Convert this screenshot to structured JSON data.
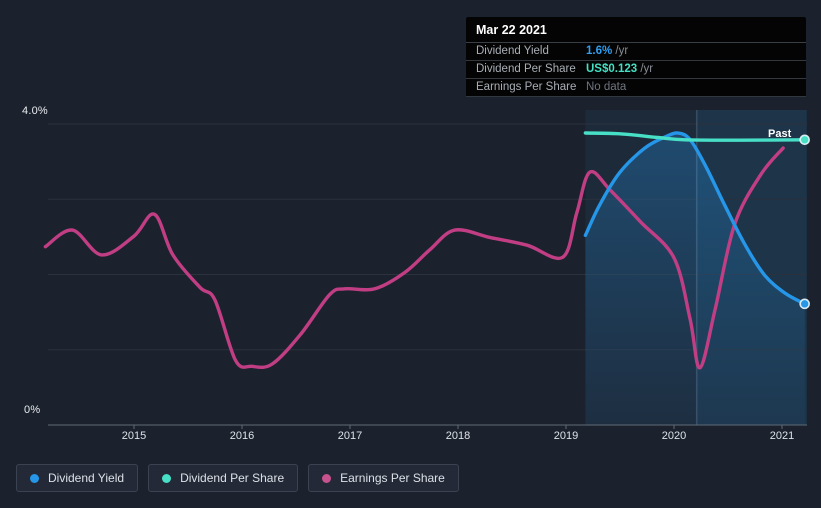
{
  "tooltip": {
    "date": "Mar 22 2021",
    "rows": [
      {
        "label": "Dividend Yield",
        "value": "1.6%",
        "suffix": " /yr",
        "value_color": "#2e9ff2"
      },
      {
        "label": "Dividend Per Share",
        "value": "US$0.123",
        "suffix": " /yr",
        "value_color": "#43e0c3"
      },
      {
        "label": "Earnings Per Share",
        "value": "No data",
        "suffix": "",
        "value_color": "#6f7680"
      }
    ]
  },
  "legend": {
    "items": [
      {
        "label": "Dividend Yield",
        "color": "#2596e8"
      },
      {
        "label": "Dividend Per Share",
        "color": "#47dfc6"
      },
      {
        "label": "Earnings Per Share",
        "color": "#c8528d"
      }
    ]
  },
  "chart_data": {
    "type": "line",
    "x_tick_labels": [
      "2015",
      "2016",
      "2017",
      "2018",
      "2019",
      "2020",
      "2021"
    ],
    "x_ticks_years": [
      2015,
      2016,
      2017,
      2018,
      2019,
      2020,
      2021
    ],
    "y_axis_labels": [
      "4.0%",
      "0%"
    ],
    "ylim": [
      0,
      4
    ],
    "y_gridlines_pct": [
      4,
      3,
      2,
      1
    ],
    "x_range_years": [
      2014.17,
      2021.23
    ],
    "grid": true,
    "legend_position": "bottom-left",
    "past_region": {
      "label": "Past",
      "start_year": 2019.18,
      "divider_year": 2020.21,
      "end_year": 2021.23
    },
    "series": [
      {
        "name": "Dividend Yield",
        "color": "#2596e8",
        "unit": "% /yr",
        "current_value": "1.6% /yr",
        "end_dot": true,
        "area_fill": true,
        "points": [
          [
            2019.18,
            2.52
          ],
          [
            2019.31,
            2.92
          ],
          [
            2019.5,
            3.36
          ],
          [
            2019.73,
            3.68
          ],
          [
            2019.92,
            3.83
          ],
          [
            2020.04,
            3.88
          ],
          [
            2020.15,
            3.79
          ],
          [
            2020.29,
            3.45
          ],
          [
            2020.47,
            2.92
          ],
          [
            2020.66,
            2.39
          ],
          [
            2020.84,
            1.99
          ],
          [
            2021.03,
            1.75
          ],
          [
            2021.21,
            1.61
          ]
        ]
      },
      {
        "name": "Dividend Per Share",
        "color": "#47dfc6",
        "unit": "US$ /yr",
        "current_value": "US$0.123 /yr",
        "end_dot": true,
        "area_fill": false,
        "points": [
          [
            2019.18,
            3.88
          ],
          [
            2019.5,
            3.87
          ],
          [
            2019.85,
            3.82
          ],
          [
            2020.1,
            3.79
          ],
          [
            2020.6,
            3.785
          ],
          [
            2021.21,
            3.79
          ]
        ]
      },
      {
        "name": "Earnings Per Share",
        "color": "#c13e84",
        "unit": "",
        "current_value": "No data",
        "end_dot": false,
        "area_fill": false,
        "points": [
          [
            2014.18,
            2.37
          ],
          [
            2014.43,
            2.59
          ],
          [
            2014.7,
            2.26
          ],
          [
            2015.0,
            2.51
          ],
          [
            2015.19,
            2.8
          ],
          [
            2015.36,
            2.26
          ],
          [
            2015.61,
            1.83
          ],
          [
            2015.75,
            1.66
          ],
          [
            2015.94,
            0.86
          ],
          [
            2016.09,
            0.78
          ],
          [
            2016.28,
            0.81
          ],
          [
            2016.54,
            1.2
          ],
          [
            2016.81,
            1.73
          ],
          [
            2016.95,
            1.81
          ],
          [
            2017.23,
            1.81
          ],
          [
            2017.51,
            2.03
          ],
          [
            2017.74,
            2.33
          ],
          [
            2017.97,
            2.59
          ],
          [
            2018.3,
            2.49
          ],
          [
            2018.64,
            2.39
          ],
          [
            2018.97,
            2.23
          ],
          [
            2019.1,
            2.82
          ],
          [
            2019.22,
            3.36
          ],
          [
            2019.41,
            3.12
          ],
          [
            2019.69,
            2.7
          ],
          [
            2020.0,
            2.22
          ],
          [
            2020.15,
            1.4
          ],
          [
            2020.24,
            0.76
          ],
          [
            2020.38,
            1.53
          ],
          [
            2020.56,
            2.66
          ],
          [
            2020.8,
            3.32
          ],
          [
            2021.01,
            3.68
          ]
        ]
      }
    ]
  }
}
